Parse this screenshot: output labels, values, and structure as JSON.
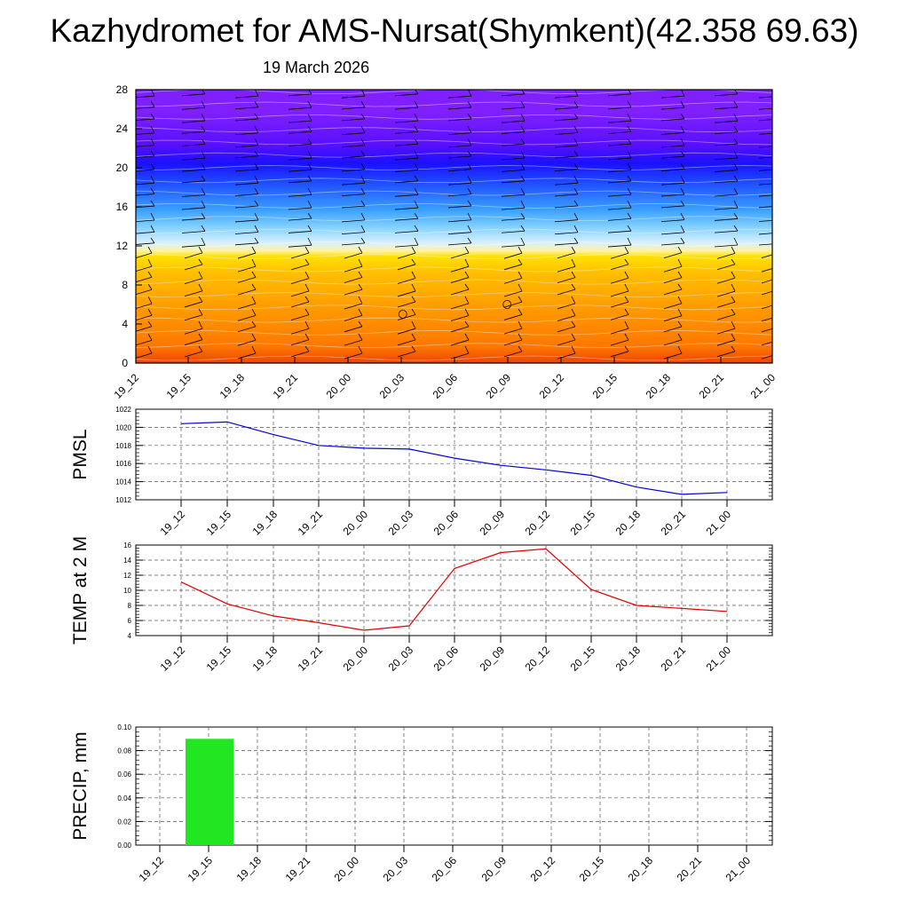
{
  "title": "Kazhydromet for AMS-Nursat(Shymkent)(42.358 69.63)",
  "subtitle": "19 March 2026",
  "colors": {
    "pmsl_line": "#0000d8",
    "temp_line": "#e00000",
    "precip_bar": "#22e622",
    "gradient_stops": [
      "#ee4400",
      "#ff7700",
      "#ff9a00",
      "#ffbf00",
      "#ffe000",
      "#fff3a0",
      "#d8f0ff",
      "#80cfff",
      "#3aa0ff",
      "#1e4dff",
      "#1a10ff",
      "#5a10ff",
      "#8020ff"
    ]
  },
  "chart_data": [
    {
      "type": "heatmap",
      "title": "",
      "xlabel": "",
      "ylabel": "",
      "x_categories": [
        "19_12",
        "19_15",
        "19_18",
        "19_21",
        "20_00",
        "20_03",
        "20_06",
        "20_09",
        "20_12",
        "20_15",
        "20_18",
        "20_21",
        "21_00"
      ],
      "y_ticks": [
        0,
        4,
        8,
        12,
        16,
        20,
        24,
        28
      ],
      "ylim": [
        0,
        28
      ],
      "grid": false,
      "overlay": "wind barbs",
      "calm_markers": [
        {
          "x": "20_03",
          "y": 5
        },
        {
          "x": "20_09",
          "y": 6
        }
      ]
    },
    {
      "type": "line",
      "ylabel": "PMSL",
      "categories": [
        "19_12",
        "19_15",
        "19_18",
        "19_21",
        "20_00",
        "20_03",
        "20_06",
        "20_09",
        "20_12",
        "20_15",
        "20_18",
        "20_21",
        "21_00"
      ],
      "y_ticks": [
        1012,
        1014,
        1016,
        1018,
        1020,
        1022
      ],
      "ylim": [
        1012,
        1022
      ],
      "grid": true,
      "series": [
        {
          "values": [
            1020.4,
            1020.6,
            1019.2,
            1018.0,
            1017.7,
            1017.6,
            1016.6,
            1015.8,
            1015.3,
            1014.7,
            1013.4,
            1012.6,
            1012.8
          ]
        }
      ]
    },
    {
      "type": "line",
      "ylabel": "TEMP at 2 M",
      "categories": [
        "19_12",
        "19_15",
        "19_18",
        "19_21",
        "20_00",
        "20_03",
        "20_06",
        "20_09",
        "20_12",
        "20_15",
        "20_18",
        "20_21",
        "21_00"
      ],
      "y_ticks": [
        4,
        6,
        8,
        10,
        12,
        14,
        16
      ],
      "ylim": [
        4,
        16
      ],
      "grid": true,
      "series": [
        {
          "values": [
            11.1,
            8.2,
            6.6,
            5.7,
            4.7,
            5.3,
            12.9,
            15.0,
            15.5,
            10.1,
            8.0,
            7.6,
            7.2
          ]
        }
      ]
    },
    {
      "type": "bar",
      "ylabel": "PRECIP, mm",
      "categories": [
        "19_12",
        "19_15",
        "19_18",
        "19_21",
        "20_00",
        "20_03",
        "20_06",
        "20_09",
        "20_12",
        "20_15",
        "20_18",
        "20_21",
        "21_00"
      ],
      "y_ticks": [
        "0.00",
        "0.02",
        "0.04",
        "0.06",
        "0.08",
        "0.10"
      ],
      "ylim": [
        0,
        0.1
      ],
      "grid": true,
      "series": [
        {
          "values": [
            0,
            0.09,
            0,
            0,
            0,
            0,
            0,
            0,
            0,
            0,
            0,
            0,
            0
          ]
        }
      ]
    }
  ]
}
